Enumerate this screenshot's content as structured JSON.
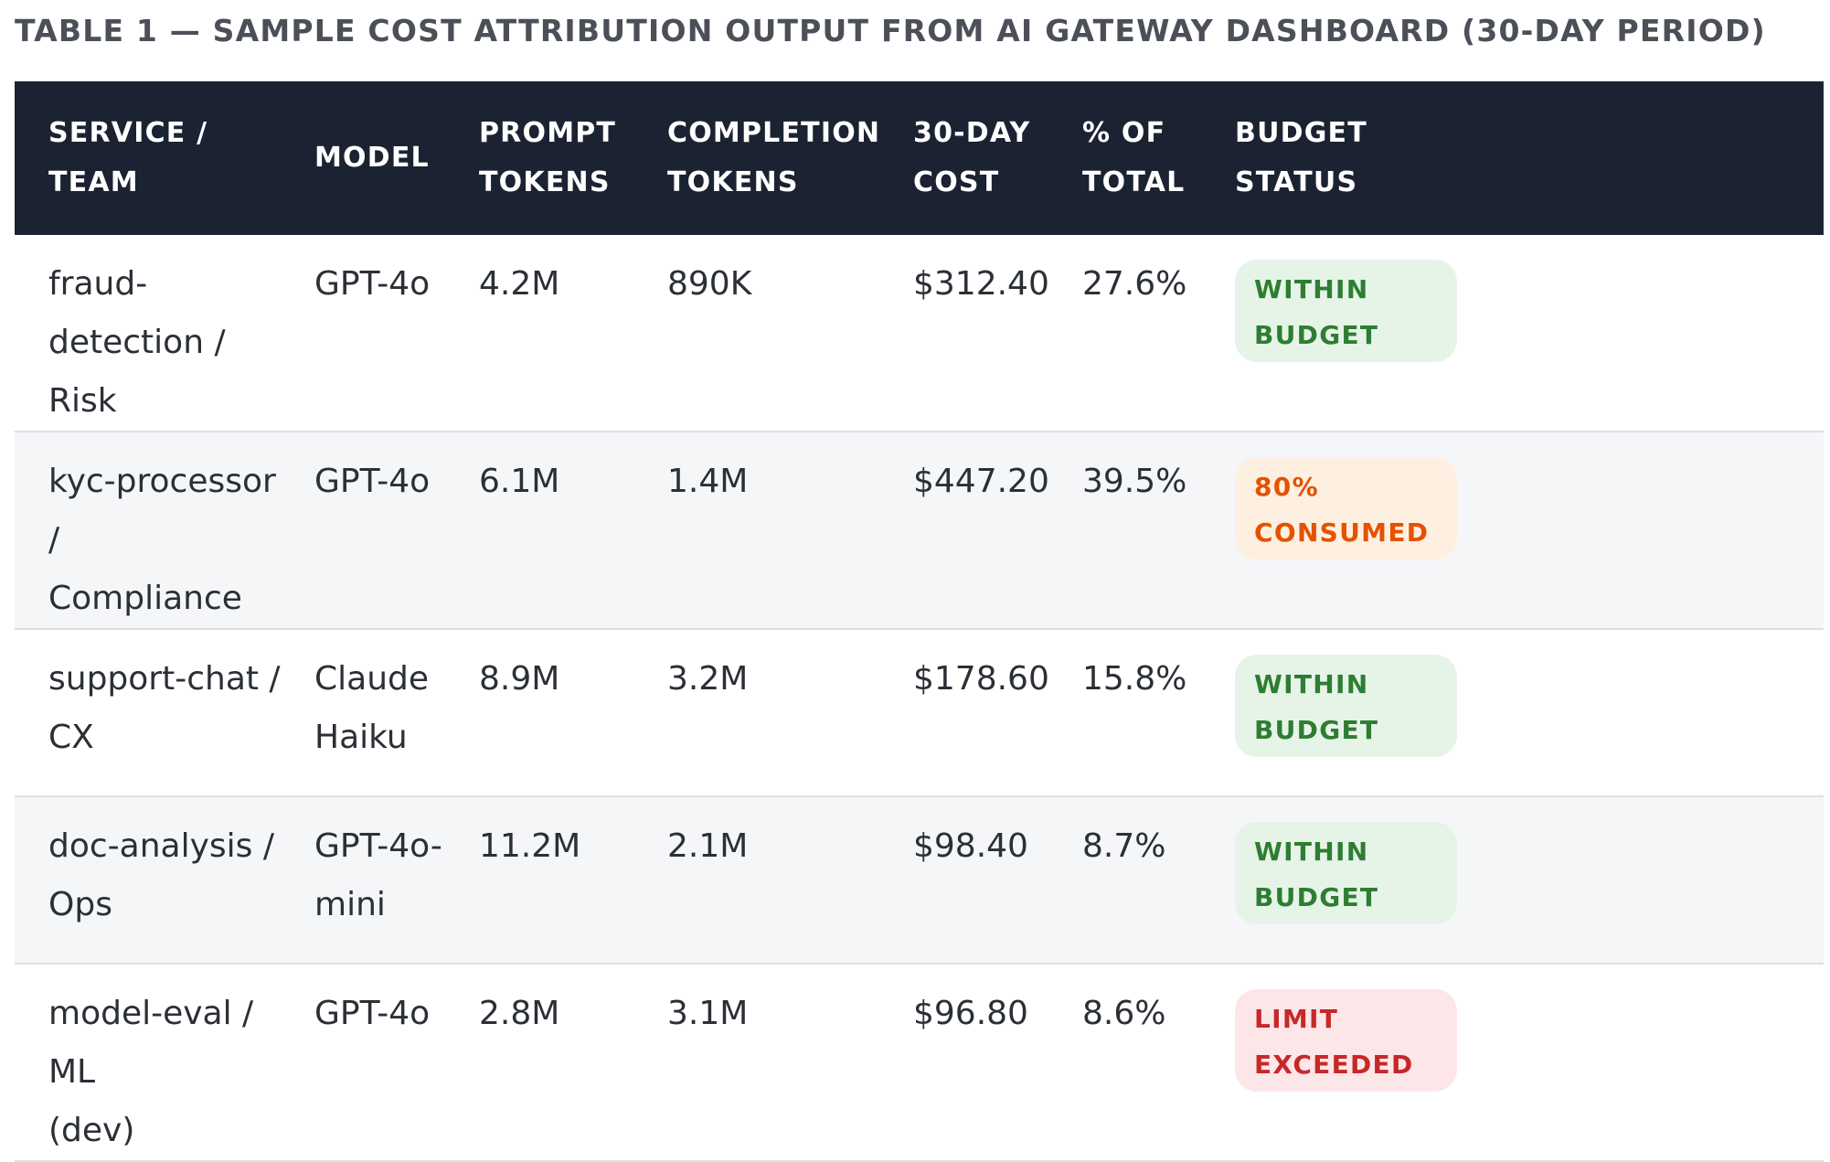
{
  "caption": "TABLE 1 — SAMPLE COST ATTRIBUTION OUTPUT FROM AI GATEWAY DASHBOARD (30-DAY PERIOD)",
  "columns": [
    [
      "SERVICE / TEAM"
    ],
    [
      "MODEL"
    ],
    [
      "PROMPT",
      "TOKENS"
    ],
    [
      "COMPLETION",
      "TOKENS"
    ],
    [
      "30-DAY",
      "COST"
    ],
    [
      "% OF",
      "TOTAL"
    ],
    [
      "BUDGET",
      "STATUS"
    ]
  ],
  "rows": [
    {
      "service": [
        "fraud-detection /",
        "Risk"
      ],
      "model": [
        "GPT-4o"
      ],
      "prompt_tokens": "4.2M",
      "completion_tokens": "890K",
      "cost": "$312.40",
      "percent": "27.6%",
      "status": [
        "WITHIN",
        "BUDGET"
      ],
      "status_level": "ok"
    },
    {
      "service": [
        "kyc-processor /",
        "Compliance"
      ],
      "model": [
        "GPT-4o"
      ],
      "prompt_tokens": "6.1M",
      "completion_tokens": "1.4M",
      "cost": "$447.20",
      "percent": "39.5%",
      "status": [
        "80%",
        "CONSUMED"
      ],
      "status_level": "warn"
    },
    {
      "service": [
        "support-chat /",
        "CX"
      ],
      "model": [
        "Claude",
        "Haiku"
      ],
      "prompt_tokens": "8.9M",
      "completion_tokens": "3.2M",
      "cost": "$178.60",
      "percent": "15.8%",
      "status": [
        "WITHIN",
        "BUDGET"
      ],
      "status_level": "ok"
    },
    {
      "service": [
        "doc-analysis /",
        "Ops"
      ],
      "model": [
        "GPT-4o-",
        "mini"
      ],
      "prompt_tokens": "11.2M",
      "completion_tokens": "2.1M",
      "cost": "$98.40",
      "percent": "8.7%",
      "status": [
        "WITHIN",
        "BUDGET"
      ],
      "status_level": "ok"
    },
    {
      "service": [
        "model-eval / ML",
        "(dev)"
      ],
      "model": [
        "GPT-4o"
      ],
      "prompt_tokens": "2.8M",
      "completion_tokens": "3.1M",
      "cost": "$96.80",
      "percent": "8.6%",
      "status": [
        "LIMIT",
        "EXCEEDED"
      ],
      "status_level": "bad"
    }
  ],
  "colors": {
    "header_bg": "#1b2333",
    "ok_bg": "#e6f4e8",
    "ok_text": "#2e7d32",
    "warn_bg": "#fdf0e0",
    "warn_text": "#e65100",
    "bad_bg": "#fde6e8",
    "bad_text": "#c62828"
  }
}
